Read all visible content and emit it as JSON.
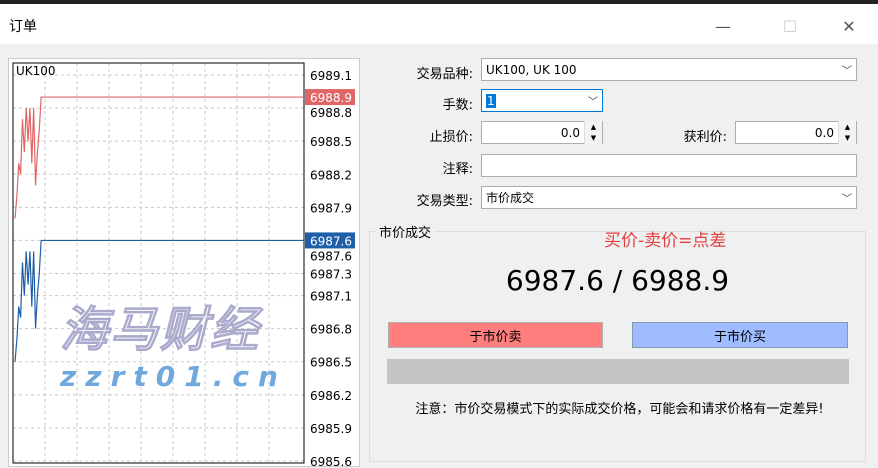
{
  "window": {
    "title": "订单",
    "minimize": "—",
    "maximize": "☐",
    "close": "✕"
  },
  "form": {
    "symbol_label": "交易品种:",
    "symbol_value": "UK100, UK 100",
    "volume_label": "手数:",
    "volume_value": "1",
    "sl_label": "止损价:",
    "sl_value": "0.0",
    "tp_label": "获利价:",
    "tp_value": "0.0",
    "comment_label": "注释:",
    "comment_value": "",
    "type_label": "交易类型:",
    "type_value": "市价成交"
  },
  "market": {
    "group_title": "市价成交",
    "annotation": "买价-卖价=点差",
    "prices": "6987.6 / 6988.9",
    "sell_label": "于市价卖",
    "buy_label": "于市价买",
    "note": "注意：市价交易模式下的实际成交价格，可能会和请求价格有一定差异!"
  },
  "watermark": {
    "text": "海马财经",
    "url": "zzrt01.cn"
  },
  "colors": {
    "ask": "#e06666",
    "bid": "#1f5fa8",
    "sell_button": "#ff7f7f",
    "buy_button": "#9ebcff",
    "annotation": "#e04040"
  },
  "chart_data": {
    "type": "line",
    "symbol": "UK100",
    "ylim": [
      6985.6,
      6989.2
    ],
    "y_ticks": [
      "6989.1",
      "6988.8",
      "6988.5",
      "6988.2",
      "6987.9",
      "6987.6",
      "6987.3",
      "6987.1",
      "6986.8",
      "6986.5",
      "6986.2",
      "6985.9",
      "6985.6"
    ],
    "ask_label": "6988.9",
    "bid_label": "6987.6",
    "series": [
      {
        "name": "ask",
        "values": [
          6987.8,
          6988.0,
          6988.3,
          6988.2,
          6988.7,
          6988.4,
          6988.8,
          6988.5,
          6988.8,
          6988.3,
          6988.8,
          6988.1,
          6988.4,
          6988.6,
          6988.9,
          6988.9
        ]
      },
      {
        "name": "bid",
        "values": [
          6986.5,
          6986.7,
          6987.0,
          6986.9,
          6987.4,
          6987.1,
          6987.5,
          6987.2,
          6987.5,
          6987.0,
          6987.5,
          6986.8,
          6987.1,
          6987.3,
          6987.6,
          6987.6
        ]
      }
    ]
  }
}
